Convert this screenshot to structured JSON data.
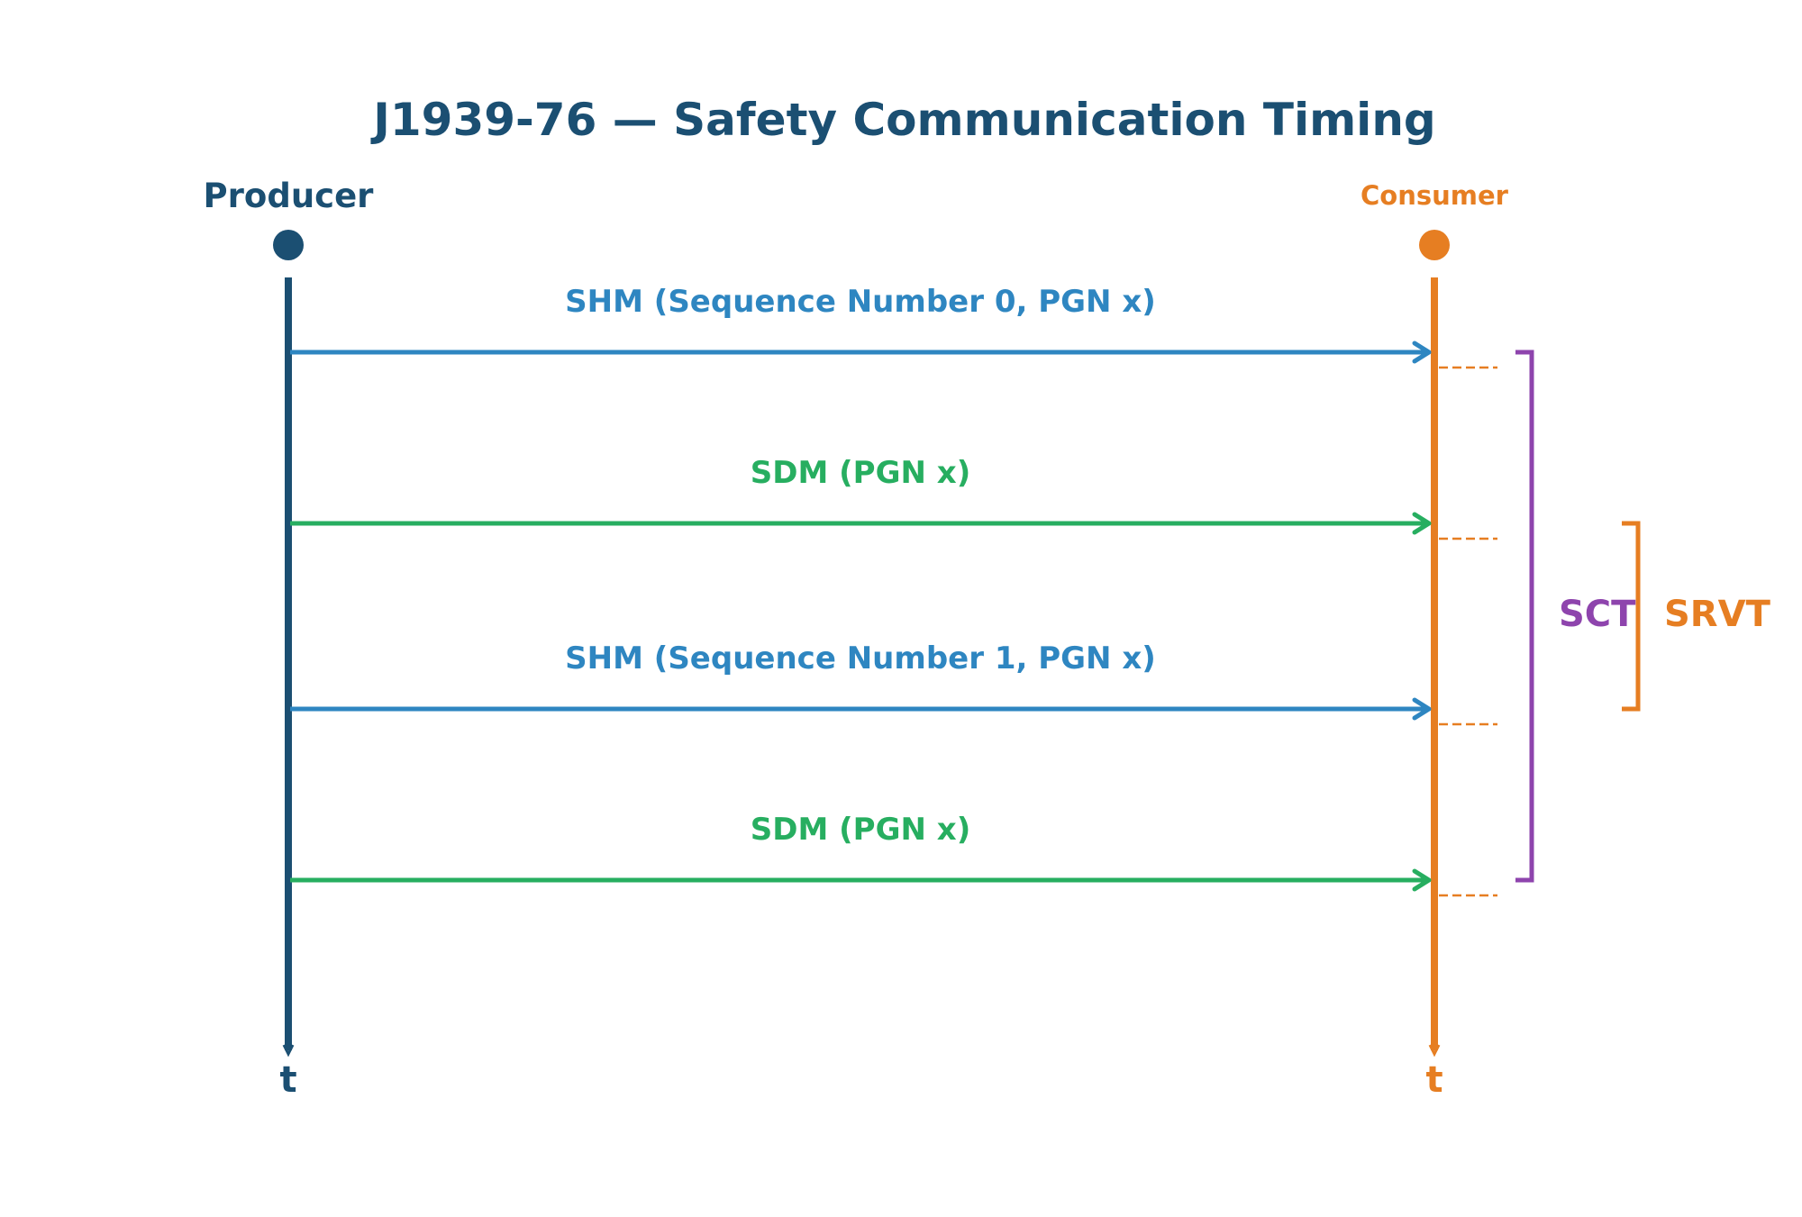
{
  "title": "J1939-76 — Safety Communication Timing",
  "producer": {
    "label": "Producer",
    "time_label": "t",
    "color": "#1b4f72"
  },
  "consumer": {
    "label": "Consumer",
    "time_label": "t",
    "color": "#e67e22"
  },
  "messages": [
    {
      "label": "SHM (Sequence Number 0, PGN x)",
      "color": "#2e86c1"
    },
    {
      "label": "SDM (PGN x)",
      "color": "#27ae60"
    },
    {
      "label": "SHM (Sequence Number 1, PGN x)",
      "color": "#2e86c1"
    },
    {
      "label": "SDM (PGN x)",
      "color": "#27ae60"
    }
  ],
  "brackets": {
    "sct": {
      "label": "SCT",
      "color": "#8e44ad"
    },
    "srvt": {
      "label": "SRVT",
      "color": "#e67e22"
    }
  }
}
